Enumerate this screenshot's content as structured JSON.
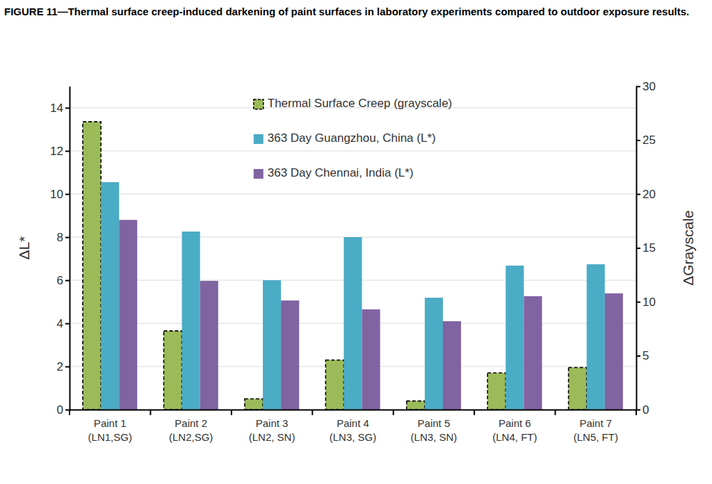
{
  "chart_data": {
    "type": "bar",
    "title": "FIGURE 11—Thermal surface creep-induced darkening of paint surfaces in laboratory experiments compared to outdoor exposure results.",
    "categories": [
      "Paint 1\n(LN1,SG)",
      "Paint 2\n(LN2,SG)",
      "Paint 3\n(LN2, SN)",
      "Paint 4\n(LN3, SG)",
      "Paint 5\n(LN3, SN)",
      "Paint 6\n(LN4, FT)",
      "Paint 7\n(LN5, FT)"
    ],
    "series": [
      {
        "name": "Thermal Surface Creep (grayscale)",
        "color": "#9bbb59",
        "line_style": "dashed",
        "axis": "y2",
        "values": [
          26.7,
          7.3,
          1.0,
          4.6,
          0.8,
          3.4,
          3.9
        ]
      },
      {
        "name": "363 Day Guangzhou, China (L*)",
        "color": "#4bacc6",
        "values": [
          10.55,
          8.26,
          6.0,
          8.0,
          5.19,
          6.68,
          6.74
        ]
      },
      {
        "name": "363 Day Chennai, India (L*)",
        "color": "#8064a2",
        "values": [
          8.8,
          5.97,
          5.06,
          4.65,
          4.1,
          5.26,
          5.39
        ]
      }
    ],
    "y_label": "ΔL*",
    "y2_label": "ΔGrayscale",
    "ylim": [
      0,
      15
    ],
    "yticks": [
      0,
      2,
      4,
      6,
      8,
      10,
      12,
      14
    ],
    "y2lim": [
      0,
      30
    ],
    "y2ticks": [
      0,
      5,
      10,
      15,
      20,
      25,
      30
    ],
    "grid": true,
    "legend": "top"
  }
}
